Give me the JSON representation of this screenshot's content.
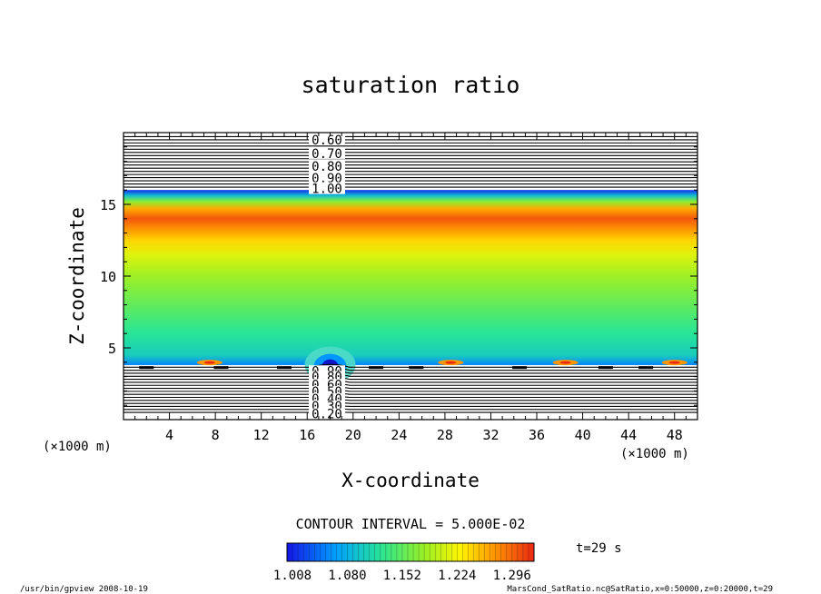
{
  "chart_data": {
    "type": "heatmap",
    "title": "saturation ratio",
    "xlabel": "X-coordinate",
    "ylabel": "Z-coordinate",
    "x_unit": "(×1000 m)",
    "z_unit": "(×1000 m)",
    "xlim": [
      0,
      50
    ],
    "ylim": [
      0,
      20
    ],
    "x_ticks": [
      "4",
      "8",
      "12",
      "16",
      "20",
      "24",
      "28",
      "32",
      "36",
      "40",
      "44",
      "48"
    ],
    "y_ticks": [
      "5",
      "10",
      "15"
    ],
    "contour_interval": "CONTOUR INTERVAL = 5.000E-02",
    "upper_contour_labels": [
      "0.60",
      "0.70",
      "0.80",
      "0.90",
      "1.00"
    ],
    "lower_contour_labels": [
      "0.90",
      "0.80",
      "0.60",
      "0.50",
      "0.40",
      "0.30",
      "0.20"
    ],
    "colorbar": {
      "min": 1.008,
      "max": 1.332,
      "tick_labels": [
        "1.008",
        "1.080",
        "1.152",
        "1.224",
        "1.296"
      ]
    },
    "profile": [
      {
        "z": 3.8,
        "value": 1.06
      },
      {
        "z": 4.5,
        "value": 1.11
      },
      {
        "z": 6.0,
        "value": 1.13
      },
      {
        "z": 8.0,
        "value": 1.16
      },
      {
        "z": 10.0,
        "value": 1.19
      },
      {
        "z": 11.5,
        "value": 1.22
      },
      {
        "z": 12.5,
        "value": 1.25
      },
      {
        "z": 13.5,
        "value": 1.29
      },
      {
        "z": 14.0,
        "value": 1.31
      },
      {
        "z": 14.7,
        "value": 1.27
      },
      {
        "z": 15.2,
        "value": 1.18
      },
      {
        "z": 15.6,
        "value": 1.1
      },
      {
        "z": 16.0,
        "value": 1.02
      }
    ]
  },
  "time_label": "t=29 s",
  "footer": {
    "left": "/usr/bin/gpview   2008-10-19",
    "right": "MarsCond_SatRatio.nc@SatRatio,x=0:50000,z=0:20000,t=29"
  }
}
